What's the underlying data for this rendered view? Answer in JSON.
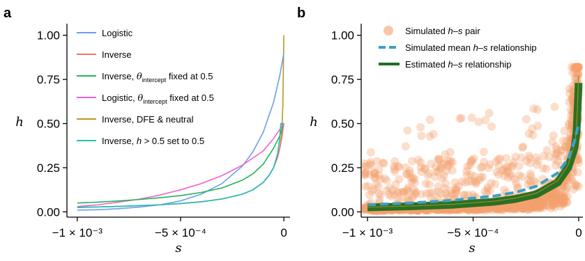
{
  "chart_data": [
    {
      "panel": "a",
      "type": "line",
      "xlabel": "s",
      "ylabel": "h",
      "xlim": [
        -0.00105,
        3e-05
      ],
      "ylim": [
        -0.03,
        1.05
      ],
      "x_ticks": [
        {
          "value": -0.001,
          "label": "−1 × 10⁻³"
        },
        {
          "value": -0.0005,
          "label": "−5 × 10⁻⁴"
        },
        {
          "value": 0,
          "label": "0"
        }
      ],
      "y_ticks": [
        {
          "value": 0,
          "label": "0.00"
        },
        {
          "value": 0.25,
          "label": "0.25"
        },
        {
          "value": 0.5,
          "label": "0.50"
        },
        {
          "value": 0.75,
          "label": "0.75"
        },
        {
          "value": 1.0,
          "label": "1.00"
        }
      ],
      "legend_position": "top-left",
      "series": [
        {
          "name": "Logistic",
          "color": "#6a9fe8",
          "x": [
            -0.001,
            -0.0009,
            -0.0008,
            -0.0007,
            -0.0006,
            -0.0005,
            -0.0004,
            -0.0003,
            -0.0002,
            -0.00015,
            -0.0001,
            -5e-05,
            -2e-05,
            0
          ],
          "y": [
            0.01,
            0.012,
            0.018,
            0.027,
            0.04,
            0.062,
            0.1,
            0.16,
            0.26,
            0.34,
            0.45,
            0.62,
            0.77,
            0.9
          ]
        },
        {
          "name": "Inverse",
          "color": "#f0726a",
          "x": [
            -0.001,
            -0.0009,
            -0.0008,
            -0.0007,
            -0.0006,
            -0.0005,
            -0.0004,
            -0.0003,
            -0.0002,
            -0.00015,
            -0.0001,
            -7e-05,
            -5e-05,
            -3e-05,
            -2e-05,
            -1e-05,
            0
          ],
          "y": [
            0.025,
            0.028,
            0.031,
            0.035,
            0.04,
            0.047,
            0.057,
            0.073,
            0.1,
            0.125,
            0.166,
            0.21,
            0.25,
            0.31,
            0.36,
            0.42,
            0.5
          ]
        },
        {
          "name": "Inverse, θintercept fixed at 0.5",
          "label_main": "Inverse, ",
          "label_theta": "θ",
          "label_sub": "intercept",
          "label_rest": " fixed at 0.5",
          "color": "#22b455",
          "x": [
            -0.001,
            -0.0009,
            -0.0008,
            -0.0007,
            -0.0006,
            -0.0005,
            -0.0004,
            -0.0003,
            -0.0002,
            -0.00015,
            -0.0001,
            -5e-05,
            -2e-05,
            0
          ],
          "y": [
            0.05,
            0.055,
            0.062,
            0.07,
            0.08,
            0.092,
            0.11,
            0.135,
            0.18,
            0.215,
            0.27,
            0.36,
            0.43,
            0.5
          ]
        },
        {
          "name": "Logistic, θintercept fixed at 0.5",
          "label_main": "Logistic, ",
          "label_theta": "θ",
          "label_sub": "intercept",
          "label_rest": " fixed at 0.5",
          "color": "#ee62d2",
          "x": [
            -0.001,
            -0.0009,
            -0.0008,
            -0.0007,
            -0.0006,
            -0.0005,
            -0.0004,
            -0.0003,
            -0.0002,
            -0.0001,
            -5e-05,
            0
          ],
          "y": [
            0.03,
            0.04,
            0.055,
            0.072,
            0.095,
            0.125,
            0.16,
            0.205,
            0.265,
            0.345,
            0.415,
            0.5
          ]
        },
        {
          "name": "Inverse, DFE & neutral",
          "color": "#b89a1e",
          "x": [
            -0.001,
            -0.0008,
            -0.0006,
            -0.0005,
            -0.0004,
            -0.0003,
            -0.0002,
            -0.00015,
            -0.0001,
            -7e-05,
            -5e-05,
            -3e-05,
            -2e-05,
            -1e-05,
            -5e-06,
            0
          ],
          "y": [
            0.025,
            0.031,
            0.04,
            0.047,
            0.057,
            0.073,
            0.1,
            0.125,
            0.166,
            0.21,
            0.25,
            0.31,
            0.36,
            0.45,
            0.6,
            1.0
          ]
        },
        {
          "name": "Inverse, h > 0.5 set to 0.5",
          "label_main": "Inverse, ",
          "label_h": "h",
          "label_rest": " > 0.5 set to 0.5",
          "color": "#1dbfbd",
          "x": [
            -0.001,
            -0.0008,
            -0.0006,
            -0.0005,
            -0.0004,
            -0.0003,
            -0.0002,
            -0.00015,
            -0.0001,
            -7e-05,
            -5e-05,
            -3e-05,
            -2e-05,
            -1.5e-05,
            -1e-05,
            -5e-06,
            0
          ],
          "y": [
            0.025,
            0.031,
            0.04,
            0.047,
            0.057,
            0.073,
            0.1,
            0.125,
            0.166,
            0.21,
            0.25,
            0.33,
            0.42,
            0.5,
            0.5,
            0.5,
            0.5
          ]
        }
      ]
    },
    {
      "panel": "b",
      "type": "scatter",
      "xlabel": "s",
      "ylabel": "h",
      "xlim": [
        -0.00103,
        2e-05
      ],
      "ylim": [
        -0.03,
        1.05
      ],
      "x_ticks": [
        {
          "value": -0.001,
          "label": "−1 × 10⁻³"
        },
        {
          "value": -0.0005,
          "label": "−5 × 10⁻⁴"
        },
        {
          "value": 0,
          "label": "0"
        }
      ],
      "y_ticks": [
        {
          "value": 0,
          "label": "0.00"
        },
        {
          "value": 0.25,
          "label": "0.25"
        },
        {
          "value": 0.5,
          "label": "0.50"
        },
        {
          "value": 0.75,
          "label": "0.75"
        },
        {
          "value": 1.0,
          "label": "1.00"
        }
      ],
      "legend_position": "top-left",
      "series": [
        {
          "name": "Simulated h–s pair",
          "label_h": "h",
          "label_s": "s",
          "label_pre": "Simulated ",
          "label_post": " pair",
          "color": "#f4a06e",
          "note_points": "dense cloud of semi-transparent points, mostly between h=0 and h=0.35, rising toward s=0 up to about 0.8"
        },
        {
          "name": "Simulated mean h–s relationship",
          "label_pre": "Simulated mean ",
          "label_post": " relationship",
          "color": "#3aa0c8",
          "x": [
            -0.001,
            -0.0008,
            -0.0006,
            -0.0004,
            -0.0003,
            -0.0002,
            -0.0001,
            -5e-05,
            -2e-05,
            0
          ],
          "y": [
            0.04,
            0.05,
            0.065,
            0.09,
            0.11,
            0.145,
            0.22,
            0.3,
            0.4,
            0.5
          ]
        },
        {
          "name": "Estimated h–s relationship",
          "label_pre": "Estimated ",
          "label_post": " relationship",
          "color": "#1f6e1f",
          "x": [
            -0.001,
            -0.0008,
            -0.0006,
            -0.0004,
            -0.0003,
            -0.0002,
            -0.0001,
            -5e-05,
            -2e-05,
            -1e-05,
            0
          ],
          "y": [
            0.025,
            0.031,
            0.04,
            0.057,
            0.073,
            0.1,
            0.166,
            0.25,
            0.36,
            0.45,
            0.73
          ]
        }
      ]
    }
  ]
}
